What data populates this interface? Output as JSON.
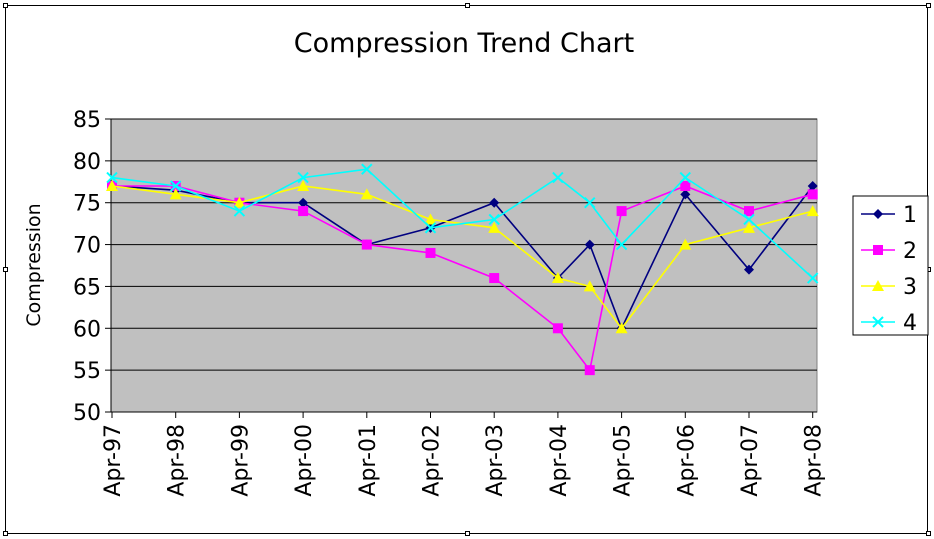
{
  "chart_data": {
    "type": "line",
    "title": "Compression Trend Chart",
    "xlabel": "",
    "ylabel": "Compression",
    "ylim": [
      50,
      85
    ],
    "yticks": [
      50,
      55,
      60,
      65,
      70,
      75,
      80,
      85
    ],
    "grid": true,
    "legend_position": "right",
    "plot_background": "#c0c0c0",
    "x_ticks": [
      "Apr-97",
      "Apr-98",
      "Apr-99",
      "Apr-00",
      "Apr-01",
      "Apr-02",
      "Apr-03",
      "Apr-04",
      "Apr-05",
      "Apr-06",
      "Apr-07",
      "Apr-08"
    ],
    "series": [
      {
        "name": "1",
        "color": "#000080",
        "marker": "diamond",
        "points": [
          {
            "x": "Apr-97",
            "y": 77
          },
          {
            "x": "Apr-98",
            "y": 76.5
          },
          {
            "x": "Apr-99",
            "y": 75
          },
          {
            "x": "Apr-00",
            "y": 75
          },
          {
            "x": "Apr-01",
            "y": 70
          },
          {
            "x": "Apr-02",
            "y": 72
          },
          {
            "x": "Apr-03",
            "y": 75
          },
          {
            "x": "Apr-04",
            "y": 66
          },
          {
            "x": "Oct-04",
            "y": 70
          },
          {
            "x": "Apr-05",
            "y": 60
          },
          {
            "x": "Apr-06",
            "y": 76
          },
          {
            "x": "Apr-07",
            "y": 67
          },
          {
            "x": "Apr-08",
            "y": 77
          }
        ]
      },
      {
        "name": "2",
        "color": "#ff00ff",
        "marker": "square",
        "points": [
          {
            "x": "Apr-97",
            "y": 77
          },
          {
            "x": "Apr-98",
            "y": 77
          },
          {
            "x": "Apr-99",
            "y": 75
          },
          {
            "x": "Apr-00",
            "y": 74
          },
          {
            "x": "Apr-01",
            "y": 70
          },
          {
            "x": "Apr-02",
            "y": 69
          },
          {
            "x": "Apr-03",
            "y": 66
          },
          {
            "x": "Apr-04",
            "y": 60
          },
          {
            "x": "Oct-04",
            "y": 55
          },
          {
            "x": "Apr-05",
            "y": 74
          },
          {
            "x": "Apr-06",
            "y": 77
          },
          {
            "x": "Apr-07",
            "y": 74
          },
          {
            "x": "Apr-08",
            "y": 76
          }
        ]
      },
      {
        "name": "3",
        "color": "#ffff00",
        "marker": "triangle",
        "points": [
          {
            "x": "Apr-97",
            "y": 77
          },
          {
            "x": "Apr-98",
            "y": 76
          },
          {
            "x": "Apr-99",
            "y": 75
          },
          {
            "x": "Apr-00",
            "y": 77
          },
          {
            "x": "Apr-01",
            "y": 76
          },
          {
            "x": "Apr-02",
            "y": 73
          },
          {
            "x": "Apr-03",
            "y": 72
          },
          {
            "x": "Apr-04",
            "y": 66
          },
          {
            "x": "Oct-04",
            "y": 65
          },
          {
            "x": "Apr-05",
            "y": 60
          },
          {
            "x": "Apr-06",
            "y": 70
          },
          {
            "x": "Apr-07",
            "y": 72
          },
          {
            "x": "Apr-08",
            "y": 74
          }
        ]
      },
      {
        "name": "4",
        "color": "#00ffff",
        "marker": "x",
        "points": [
          {
            "x": "Apr-97",
            "y": 78
          },
          {
            "x": "Apr-98",
            "y": 77
          },
          {
            "x": "Apr-99",
            "y": 74
          },
          {
            "x": "Apr-00",
            "y": 78
          },
          {
            "x": "Apr-01",
            "y": 79
          },
          {
            "x": "Apr-02",
            "y": 72
          },
          {
            "x": "Apr-03",
            "y": 73
          },
          {
            "x": "Apr-04",
            "y": 78
          },
          {
            "x": "Oct-04",
            "y": 75
          },
          {
            "x": "Apr-05",
            "y": 70
          },
          {
            "x": "Apr-06",
            "y": 78
          },
          {
            "x": "Apr-07",
            "y": 73
          },
          {
            "x": "Apr-08",
            "y": 66
          }
        ]
      }
    ]
  }
}
